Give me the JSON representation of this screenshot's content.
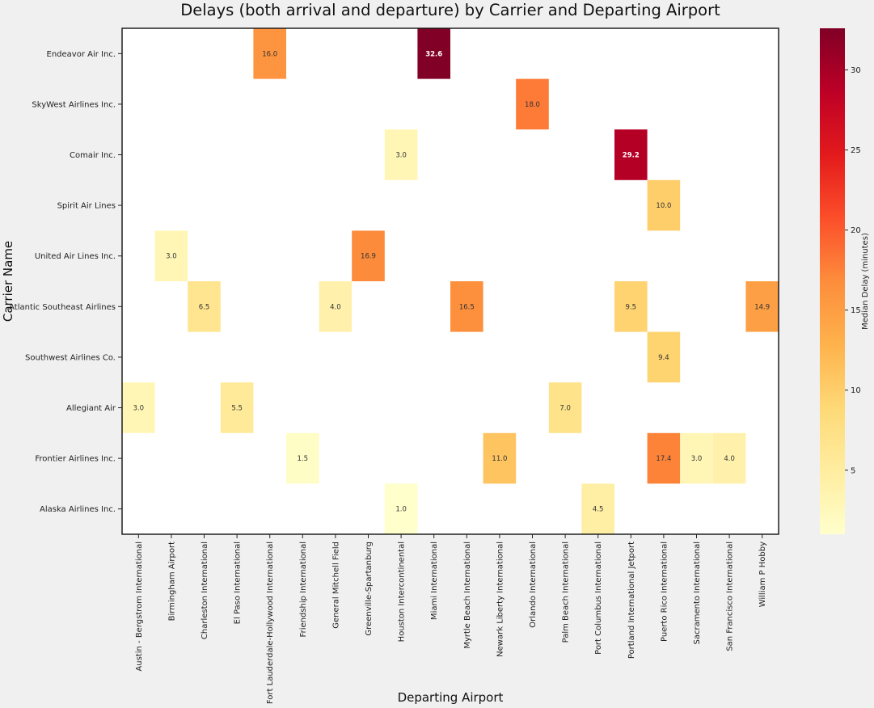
{
  "chart_data": {
    "type": "heatmap",
    "title": "Delays (both arrival and departure) by Carrier and Departing Airport",
    "xlabel": "Departing Airport",
    "ylabel": "Carrier Name",
    "x_categories": [
      "Austin - Bergstrom International",
      "Birmingham Airport",
      "Charleston International",
      "El Paso International",
      "Fort Lauderdale-Hollywood International",
      "Friendship International",
      "General Mitchell Field",
      "Greenville-Spartanburg",
      "Houston Intercontinental",
      "Miami International",
      "Myrtle Beach International",
      "Newark Liberty International",
      "Orlando International",
      "Palm Beach International",
      "Port Columbus International",
      "Portland International Jetport",
      "Puerto Rico International",
      "Sacramento International",
      "San Francisco International",
      "William P Hobby"
    ],
    "y_categories": [
      "Endeavor Air Inc.",
      "SkyWest Airlines Inc.",
      "Comair Inc.",
      "Spirit Air Lines",
      "United Air Lines Inc.",
      "Atlantic Southeast Airlines",
      "Southwest Airlines Co.",
      "Allegiant Air",
      "Frontier Airlines Inc.",
      "Alaska Airlines Inc."
    ],
    "cells": [
      {
        "carrier": "Endeavor Air Inc.",
        "airport": "Fort Lauderdale-Hollywood International",
        "value": 16.0,
        "label": "16.0"
      },
      {
        "carrier": "Endeavor Air Inc.",
        "airport": "Miami International",
        "value": 32.6,
        "label": "32.6"
      },
      {
        "carrier": "SkyWest Airlines Inc.",
        "airport": "Orlando International",
        "value": 18.0,
        "label": "18.0"
      },
      {
        "carrier": "Comair Inc.",
        "airport": "Houston Intercontinental",
        "value": 3.0,
        "label": "3.0"
      },
      {
        "carrier": "Comair Inc.",
        "airport": "Portland International Jetport",
        "value": 29.2,
        "label": "29.2"
      },
      {
        "carrier": "Spirit Air Lines",
        "airport": "Puerto Rico International",
        "value": 10.0,
        "label": "10.0"
      },
      {
        "carrier": "United Air Lines Inc.",
        "airport": "Birmingham Airport",
        "value": 3.0,
        "label": "3.0"
      },
      {
        "carrier": "United Air Lines Inc.",
        "airport": "Greenville-Spartanburg",
        "value": 16.9,
        "label": "16.9"
      },
      {
        "carrier": "Atlantic Southeast Airlines",
        "airport": "Charleston International",
        "value": 6.5,
        "label": "6.5"
      },
      {
        "carrier": "Atlantic Southeast Airlines",
        "airport": "General Mitchell Field",
        "value": 4.0,
        "label": "4.0"
      },
      {
        "carrier": "Atlantic Southeast Airlines",
        "airport": "Myrtle Beach International",
        "value": 16.5,
        "label": "16.5"
      },
      {
        "carrier": "Atlantic Southeast Airlines",
        "airport": "Portland International Jetport",
        "value": 9.5,
        "label": "9.5"
      },
      {
        "carrier": "Atlantic Southeast Airlines",
        "airport": "William P Hobby",
        "value": 14.9,
        "label": "14.9"
      },
      {
        "carrier": "Southwest Airlines Co.",
        "airport": "Puerto Rico International",
        "value": 9.4,
        "label": "9.4"
      },
      {
        "carrier": "Allegiant Air",
        "airport": "Austin - Bergstrom International",
        "value": 3.0,
        "label": "3.0"
      },
      {
        "carrier": "Allegiant Air",
        "airport": "El Paso International",
        "value": 5.5,
        "label": "5.5"
      },
      {
        "carrier": "Allegiant Air",
        "airport": "Palm Beach International",
        "value": 7.0,
        "label": "7.0"
      },
      {
        "carrier": "Frontier Airlines Inc.",
        "airport": "Friendship International",
        "value": 1.5,
        "label": "1.5"
      },
      {
        "carrier": "Frontier Airlines Inc.",
        "airport": "Newark Liberty International",
        "value": 11.0,
        "label": "11.0"
      },
      {
        "carrier": "Frontier Airlines Inc.",
        "airport": "Puerto Rico International",
        "value": 17.4,
        "label": "17.4"
      },
      {
        "carrier": "Frontier Airlines Inc.",
        "airport": "Sacramento International",
        "value": 3.0,
        "label": "3.0"
      },
      {
        "carrier": "Frontier Airlines Inc.",
        "airport": "San Francisco International",
        "value": 4.0,
        "label": "4.0"
      },
      {
        "carrier": "Alaska Airlines Inc.",
        "airport": "Houston Intercontinental",
        "value": 1.0,
        "label": "1.0"
      },
      {
        "carrier": "Alaska Airlines Inc.",
        "airport": "Port Columbus International",
        "value": 4.5,
        "label": "4.5"
      }
    ],
    "colorbar": {
      "label": "Median Delay (minutes)",
      "colormap": "YlOrRd",
      "vmin": 1.0,
      "vmax": 32.6,
      "ticks": [
        5,
        10,
        15,
        20,
        25,
        30
      ],
      "tick_labels": [
        "5",
        "10",
        "15",
        "20",
        "25",
        "30"
      ],
      "stops": [
        "#ffffcc",
        "#ffeda0",
        "#fed976",
        "#feb24c",
        "#fd8d3c",
        "#fc4e2a",
        "#e31a1c",
        "#bd0026",
        "#800026"
      ]
    },
    "grid": false,
    "empty_cell_color": "#ffffff"
  }
}
